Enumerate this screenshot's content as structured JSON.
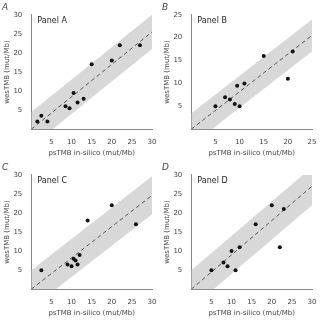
{
  "chart_data": [
    {
      "type": "scatter",
      "title": "A",
      "annotations": [
        "Panel A"
      ],
      "xlabel": "psTMB in-silico (mut/Mb)",
      "ylabel": "wesTMB (mut/Mb)",
      "xlim": [
        0,
        30
      ],
      "ylim": [
        0,
        30
      ],
      "xticks": [
        {
          "value": 0,
          "label": ""
        },
        5,
        10,
        15,
        20,
        25,
        30
      ],
      "yticks": [
        {
          "value": 0,
          "label": ""
        },
        5,
        10,
        15,
        20,
        25,
        30
      ],
      "grid": false,
      "series": [
        {
          "type": "scatter",
          "color": "#111111",
          "marker": "circle",
          "x": [
            1.5,
            2.5,
            4.0,
            8.5,
            9.5,
            10.5,
            11.5,
            13.0,
            15.0,
            20.0,
            22.0,
            27.0
          ],
          "values": [
            2.0,
            3.5,
            2.0,
            6.0,
            5.5,
            9.5,
            7.0,
            8.0,
            17.0,
            18.0,
            22.0,
            22.0
          ]
        },
        {
          "type": "line",
          "line_style": "dashed",
          "color": "#555555",
          "x": [
            0,
            30
          ],
          "values": [
            0,
            25.5
          ]
        },
        {
          "type": "band",
          "color": "#d8d8d8",
          "x": [
            0,
            30
          ],
          "values": [
            0,
            25.5
          ],
          "half_width": 4.5
        }
      ]
    },
    {
      "type": "scatter",
      "title": "B",
      "annotations": [
        "Panel B"
      ],
      "xlabel": "psTMB in-silico (mut/Mb)",
      "ylabel": "wesTMB (mut/Mb)",
      "xlim": [
        0,
        25
      ],
      "ylim": [
        0,
        25
      ],
      "xticks": [
        {
          "value": 0,
          "label": ""
        },
        5,
        10,
        15,
        20,
        25
      ],
      "yticks": [
        {
          "value": 0,
          "label": ""
        },
        5,
        10,
        15,
        20,
        25
      ],
      "grid": false,
      "series": [
        {
          "type": "scatter",
          "color": "#111111",
          "marker": "circle",
          "x": [
            5.0,
            7.0,
            8.0,
            9.0,
            9.5,
            10.0,
            11.0,
            15.0,
            20.0,
            21.0
          ],
          "values": [
            5.0,
            7.0,
            6.5,
            5.5,
            9.5,
            5.0,
            10.0,
            16.0,
            11.0,
            17.0
          ]
        },
        {
          "type": "line",
          "line_style": "dashed",
          "color": "#555555",
          "x": [
            0,
            25
          ],
          "values": [
            0,
            20.5
          ]
        },
        {
          "type": "band",
          "color": "#d8d8d8",
          "x": [
            0,
            25
          ],
          "values": [
            0,
            20.5
          ],
          "half_width": 3.5
        }
      ]
    },
    {
      "type": "scatter",
      "title": "C",
      "annotations": [
        "Panel C"
      ],
      "xlabel": "psTMB in-silico (mut/Mb)",
      "ylabel": "wesTMB (mut/Mb)",
      "xlim": [
        0,
        30
      ],
      "ylim": [
        0,
        30
      ],
      "xticks": [
        {
          "value": 0,
          "label": ""
        },
        5,
        10,
        15,
        20,
        25,
        30
      ],
      "yticks": [
        {
          "value": 0,
          "label": ""
        },
        5,
        10,
        15,
        20,
        25,
        30
      ],
      "grid": false,
      "series": [
        {
          "type": "scatter",
          "color": "#111111",
          "marker": "circle",
          "x": [
            2.5,
            9.0,
            10.0,
            10.5,
            11.0,
            11.5,
            12.0,
            14.0,
            20.0,
            26.0
          ],
          "values": [
            5.0,
            6.5,
            6.0,
            8.0,
            7.5,
            6.5,
            9.0,
            18.0,
            22.0,
            17.0
          ]
        },
        {
          "type": "line",
          "line_style": "dashed",
          "color": "#555555",
          "x": [
            0,
            30
          ],
          "values": [
            0,
            24.6
          ]
        },
        {
          "type": "band",
          "color": "#d8d8d8",
          "x": [
            0,
            30
          ],
          "values": [
            0,
            24.6
          ],
          "half_width": 5.0
        }
      ]
    },
    {
      "type": "scatter",
      "title": "D",
      "annotations": [
        "Panel D"
      ],
      "xlabel": "psTMB in-silico (mut/Mb)",
      "ylabel": "wesTMB (mut/Mb)",
      "xlim": [
        0,
        30
      ],
      "ylim": [
        0,
        30
      ],
      "xticks": [
        {
          "value": 0,
          "label": ""
        },
        5,
        10,
        15,
        20,
        25,
        30
      ],
      "yticks": [
        {
          "value": 0,
          "label": ""
        },
        5,
        10,
        15,
        20,
        25,
        30
      ],
      "grid": false,
      "series": [
        {
          "type": "scatter",
          "color": "#111111",
          "marker": "circle",
          "x": [
            5.0,
            8.0,
            9.0,
            10.0,
            11.0,
            12.0,
            16.0,
            20.0,
            22.0,
            23.0
          ],
          "values": [
            5.0,
            7.0,
            6.0,
            10.0,
            5.0,
            11.0,
            17.0,
            22.0,
            11.0,
            21.0
          ]
        },
        {
          "type": "line",
          "line_style": "dashed",
          "color": "#555555",
          "x": [
            0,
            30
          ],
          "values": [
            0,
            27
          ]
        },
        {
          "type": "band",
          "color": "#d8d8d8",
          "x": [
            0,
            30
          ],
          "values": [
            0,
            27
          ],
          "half_width": 5.0
        }
      ]
    }
  ]
}
